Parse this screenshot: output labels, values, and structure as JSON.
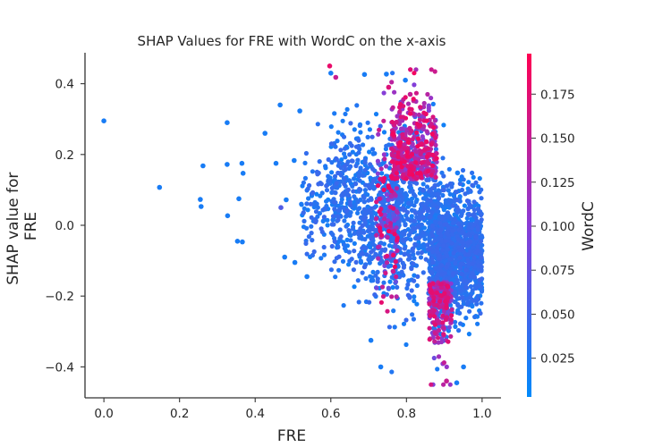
{
  "chart_data": {
    "type": "scatter",
    "title": "SHAP Values for FRE with WordC on the x-axis",
    "xlabel": "FRE",
    "ylabel_lines": [
      "SHAP value for",
      "FRE"
    ],
    "xlim": [
      -0.05,
      1.05
    ],
    "ylim": [
      -0.49,
      0.49
    ],
    "x_ticks": [
      0.0,
      0.2,
      0.4,
      0.6,
      0.8,
      1.0
    ],
    "x_tick_labels": [
      "0.0",
      "0.2",
      "0.4",
      "0.6",
      "0.8",
      "1.0"
    ],
    "y_ticks": [
      -0.4,
      -0.2,
      0.0,
      0.2,
      0.4
    ],
    "y_tick_labels": [
      "−0.4",
      "−0.2",
      "0.0",
      "0.2",
      "0.4"
    ],
    "grid": false,
    "colorbar": {
      "label": "WordC",
      "range": [
        0.003,
        0.198
      ],
      "ticks": [
        0.025,
        0.05,
        0.075,
        0.1,
        0.125,
        0.15,
        0.175
      ],
      "tick_labels": [
        "0.025",
        "0.050",
        "0.075",
        "0.100",
        "0.125",
        "0.150",
        "0.175"
      ],
      "color_low": "#008afb",
      "color_mid": "#8a3bd6",
      "color_high": "#ff0052"
    },
    "outlier_points": [
      {
        "x": 0.0,
        "y": 0.295,
        "c": 0.02
      },
      {
        "x": 0.147,
        "y": 0.107,
        "c": 0.02
      },
      {
        "x": 0.262,
        "y": 0.168,
        "c": 0.02
      },
      {
        "x": 0.255,
        "y": 0.073,
        "c": 0.02
      },
      {
        "x": 0.257,
        "y": 0.053,
        "c": 0.02
      },
      {
        "x": 0.326,
        "y": 0.29,
        "c": 0.02
      },
      {
        "x": 0.326,
        "y": 0.172,
        "c": 0.02
      },
      {
        "x": 0.327,
        "y": 0.027,
        "c": 0.02
      },
      {
        "x": 0.357,
        "y": 0.075,
        "c": 0.02
      },
      {
        "x": 0.365,
        "y": 0.175,
        "c": 0.02
      },
      {
        "x": 0.368,
        "y": 0.147,
        "c": 0.02
      },
      {
        "x": 0.353,
        "y": -0.045,
        "c": 0.02
      },
      {
        "x": 0.366,
        "y": -0.047,
        "c": 0.02
      },
      {
        "x": 0.426,
        "y": 0.26,
        "c": 0.02
      },
      {
        "x": 0.455,
        "y": 0.175,
        "c": 0.02
      },
      {
        "x": 0.466,
        "y": 0.34,
        "c": 0.02
      },
      {
        "x": 0.468,
        "y": 0.05,
        "c": 0.06
      },
      {
        "x": 0.478,
        "y": -0.09,
        "c": 0.02
      },
      {
        "x": 0.482,
        "y": 0.072,
        "c": 0.02
      },
      {
        "x": 0.503,
        "y": 0.183,
        "c": 0.02
      },
      {
        "x": 0.505,
        "y": -0.105,
        "c": 0.02
      },
      {
        "x": 0.518,
        "y": 0.323,
        "c": 0.02
      },
      {
        "x": 0.537,
        "y": -0.145,
        "c": 0.02
      },
      {
        "x": 0.6,
        "y": 0.43,
        "c": 0.02
      },
      {
        "x": 0.597,
        "y": 0.45,
        "c": 0.18
      },
      {
        "x": 0.613,
        "y": 0.418,
        "c": 0.15
      },
      {
        "x": 0.689,
        "y": 0.426,
        "c": 0.02
      },
      {
        "x": 0.747,
        "y": 0.427,
        "c": 0.02
      },
      {
        "x": 0.753,
        "y": 0.39,
        "c": 0.17
      },
      {
        "x": 0.732,
        "y": -0.4,
        "c": 0.02
      },
      {
        "x": 0.706,
        "y": -0.325,
        "c": 0.02
      },
      {
        "x": 0.797,
        "y": 0.41,
        "c": 0.02
      },
      {
        "x": 0.81,
        "y": 0.37,
        "c": 0.15
      },
      {
        "x": 0.906,
        "y": -0.44,
        "c": 0.15
      },
      {
        "x": 0.933,
        "y": -0.445,
        "c": 0.02
      },
      {
        "x": 0.951,
        "y": -0.4,
        "c": 0.02
      },
      {
        "x": 0.935,
        "y": 0.148,
        "c": 0.02
      },
      {
        "x": 0.943,
        "y": 0.128,
        "c": 0.02
      }
    ],
    "dense_clusters": [
      {
        "x_range": [
          0.68,
          0.72
        ],
        "y_center": 0.03,
        "y_spread": 0.17,
        "count": 150,
        "c_pattern": "low"
      },
      {
        "x_range": [
          0.72,
          0.78
        ],
        "y_center": 0.02,
        "y_spread": 0.18,
        "count": 350,
        "c_pattern": "mixed"
      },
      {
        "x_range": [
          0.76,
          0.88
        ],
        "y_center": 0.04,
        "y_spread": 0.2,
        "count": 900,
        "c_pattern": "mixed_up"
      },
      {
        "x_range": [
          0.86,
          0.92
        ],
        "y_center": -0.08,
        "y_spread": 0.16,
        "count": 500,
        "c_pattern": "mixed_down"
      },
      {
        "x_range": [
          0.88,
          1.0
        ],
        "y_center": -0.08,
        "y_spread": 0.13,
        "count": 1100,
        "c_pattern": "low"
      },
      {
        "x_range": [
          0.6,
          0.68
        ],
        "y_center": 0.08,
        "y_spread": 0.17,
        "count": 250,
        "c_pattern": "low"
      },
      {
        "x_range": [
          0.52,
          0.6
        ],
        "y_center": 0.06,
        "y_spread": 0.12,
        "count": 90,
        "c_pattern": "low"
      }
    ]
  }
}
